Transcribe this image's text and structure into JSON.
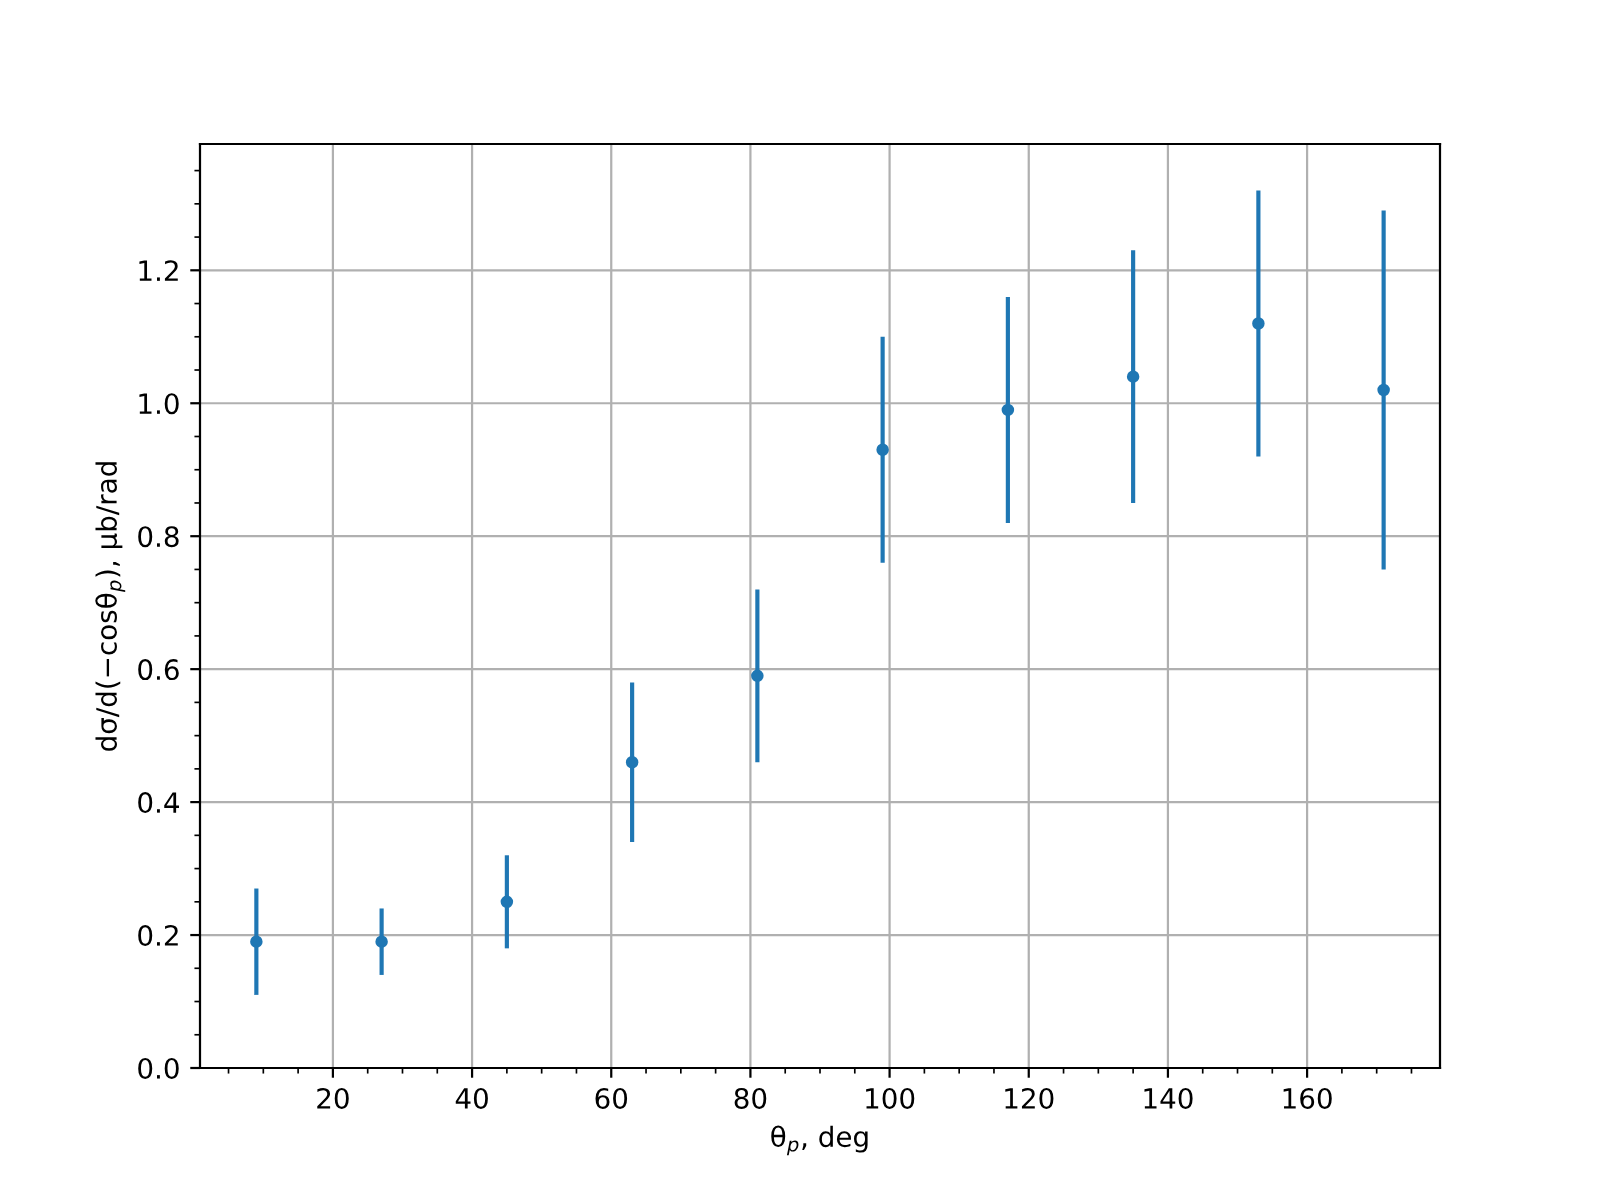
{
  "chart_data": {
    "type": "scatter",
    "xlabel": "θ$_{p}$, deg",
    "ylabel": "dσ/d(−cosθ$_{p}$), µb/rad",
    "x": [
      9,
      27,
      45,
      63,
      81,
      99,
      117,
      135,
      153,
      171
    ],
    "series": [
      {
        "color": "#1f77b4",
        "values": [
          0.19,
          0.19,
          0.25,
          0.46,
          0.59,
          0.93,
          0.99,
          1.04,
          1.12,
          1.02
        ],
        "errors": [
          0.08,
          0.05,
          0.07,
          0.12,
          0.13,
          0.17,
          0.17,
          0.19,
          0.2,
          0.27
        ]
      }
    ],
    "xlim": [
      0.9,
      179.1
    ],
    "ylim": [
      0,
      1.39
    ],
    "xticks": [
      20,
      40,
      60,
      80,
      100,
      120,
      140,
      160
    ],
    "yticks": [
      {
        "value": 0,
        "label": "0.0"
      },
      0.2,
      0.4,
      0.6,
      0.8,
      {
        "value": 1,
        "label": "1.0"
      },
      1.2
    ],
    "grid": true,
    "marker": "circle"
  }
}
